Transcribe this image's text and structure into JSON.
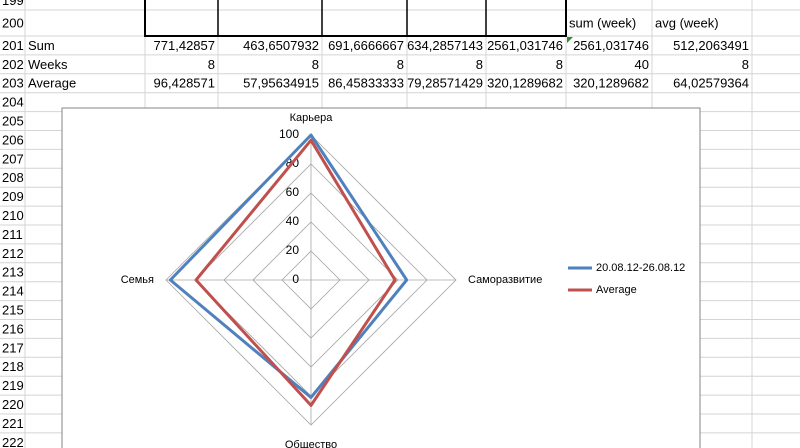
{
  "sheet": {
    "rows": [
      {
        "header": "199",
        "cells": [
          null,
          null,
          null,
          null,
          null,
          null,
          null,
          null
        ]
      },
      {
        "header": "200",
        "cells": [
          null,
          null,
          null,
          null,
          null,
          null,
          "sum (week)",
          "avg (week)"
        ]
      },
      {
        "header": "201",
        "cells": [
          "Sum",
          "771,42857",
          "463,6507932",
          "691,6666667",
          "634,2857143",
          "2561,031746",
          "2561,031746",
          "512,2063491"
        ]
      },
      {
        "header": "202",
        "cells": [
          "Weeks",
          "8",
          "8",
          "8",
          "8",
          "8",
          "40",
          "8"
        ]
      },
      {
        "header": "203",
        "cells": [
          "Average",
          "96,428571",
          "57,95634915",
          "86,45833333",
          "79,28571429",
          "320,1289682",
          "320,1289682",
          "64,02579364"
        ]
      },
      {
        "header": "204",
        "cells": []
      },
      {
        "header": "205",
        "cells": []
      },
      {
        "header": "206",
        "cells": []
      },
      {
        "header": "207",
        "cells": []
      },
      {
        "header": "208",
        "cells": []
      },
      {
        "header": "209",
        "cells": []
      },
      {
        "header": "210",
        "cells": []
      },
      {
        "header": "211",
        "cells": []
      },
      {
        "header": "212",
        "cells": []
      },
      {
        "header": "213",
        "cells": []
      },
      {
        "header": "214",
        "cells": []
      },
      {
        "header": "215",
        "cells": []
      },
      {
        "header": "216",
        "cells": []
      },
      {
        "header": "217",
        "cells": []
      },
      {
        "header": "218",
        "cells": []
      },
      {
        "header": "219",
        "cells": []
      },
      {
        "header": "220",
        "cells": []
      },
      {
        "header": "221",
        "cells": []
      },
      {
        "header": "222",
        "cells": []
      }
    ]
  },
  "chart_data": {
    "type": "radar",
    "categories": [
      "Карьера",
      "Саморазвитие",
      "Общество",
      "Семья"
    ],
    "series": [
      {
        "name": "20.08.12-26.08.12",
        "color": "#4f81bd",
        "values": [
          100,
          66,
          81,
          97
        ]
      },
      {
        "name": "Average",
        "color": "#c0504d",
        "values": [
          96.428571,
          57.95634915,
          86.45833333,
          79.28571429
        ]
      }
    ],
    "ylim": [
      0,
      100
    ],
    "yticks": [
      0,
      20,
      40,
      60,
      80,
      100
    ],
    "grid": true,
    "legend": "right"
  }
}
